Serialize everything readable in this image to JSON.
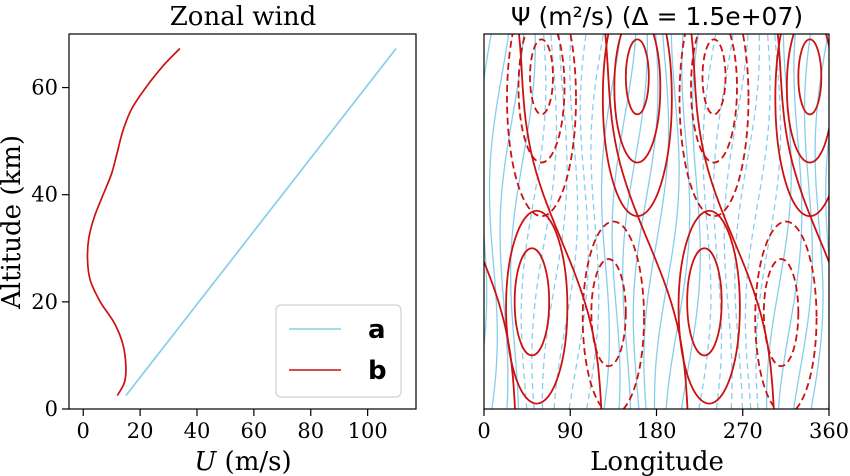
{
  "chart_data": [
    {
      "type": "line",
      "title": "Zonal wind",
      "xlabel": "U (m/s)",
      "ylabel": "Altitude (km)",
      "xlim": [
        -5,
        117
      ],
      "ylim": [
        0,
        70
      ],
      "xticks": [
        0,
        20,
        40,
        60,
        80,
        100
      ],
      "yticks": [
        0,
        20,
        40,
        60
      ],
      "legend": "bottom-right",
      "series": [
        {
          "name": "a",
          "color": "#87ceeb",
          "x": [
            15,
            110
          ],
          "y": [
            2.5,
            67.3
          ]
        },
        {
          "name": "b",
          "color": "#cc1111",
          "x": [
            12,
            14.5,
            15,
            14,
            11,
            6,
            2.5,
            1.5,
            2,
            4,
            7,
            10,
            12,
            14,
            17,
            22,
            28,
            34
          ],
          "y": [
            2.5,
            5,
            8,
            12,
            16,
            20,
            24,
            28,
            32,
            36,
            40,
            44,
            48,
            52,
            56,
            60,
            64,
            67.3
          ]
        }
      ]
    },
    {
      "type": "contour",
      "title": "Ψ (m²/s) (Δ = 1.5e+07)",
      "xlabel": "Longitude",
      "ylabel": "",
      "xlim": [
        0,
        360
      ],
      "ylim": [
        0,
        70
      ],
      "xticks": [
        0,
        90,
        180,
        270,
        360
      ],
      "wave_period_deg": 180,
      "contour_interval": "1.5e+07",
      "series": [
        {
          "name": "a",
          "color": "#87ceeb"
        },
        {
          "name": "b",
          "color": "#cc1111"
        }
      ]
    }
  ]
}
